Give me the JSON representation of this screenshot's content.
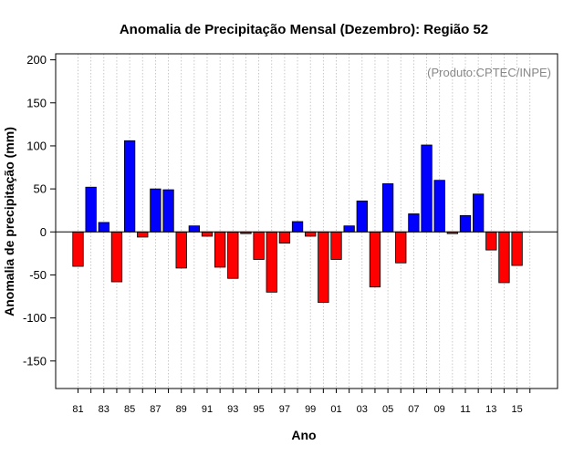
{
  "chart_data": {
    "type": "bar",
    "title": "Anomalia de Precipitação Mensal (Dezembro): Região 52",
    "xlabel": "Ano",
    "ylabel": "Anomalia de precipitação (mm)",
    "credit": "(Produto:CPTEC/INPE)",
    "ylim": [
      -182,
      207
    ],
    "yticks": [
      -150,
      -100,
      -50,
      0,
      50,
      100,
      150,
      200
    ],
    "xtick_labels": [
      "81",
      "83",
      "85",
      "87",
      "89",
      "91",
      "93",
      "95",
      "97",
      "99",
      "01",
      "03",
      "05",
      "07",
      "09",
      "11",
      "13",
      "15"
    ],
    "categories": [
      "81",
      "82",
      "83",
      "84",
      "85",
      "86",
      "87",
      "88",
      "89",
      "90",
      "91",
      "92",
      "93",
      "94",
      "95",
      "96",
      "97",
      "98",
      "99",
      "00",
      "01",
      "02",
      "03",
      "04",
      "05",
      "06",
      "07",
      "08",
      "09",
      "10",
      "11",
      "12",
      "13",
      "14",
      "15"
    ],
    "values": [
      -40,
      52,
      11,
      -58,
      106,
      -6,
      50,
      49,
      -42,
      7,
      -5,
      -41,
      -54,
      -2,
      -32,
      -70,
      -13,
      12,
      -5,
      -82,
      -32,
      7,
      36,
      -64,
      56,
      -36,
      21,
      101,
      60,
      -2,
      19,
      44,
      -21,
      -59,
      -39
    ],
    "grid": true,
    "positive_color": "#0000ff",
    "negative_color": "#ff0000"
  }
}
